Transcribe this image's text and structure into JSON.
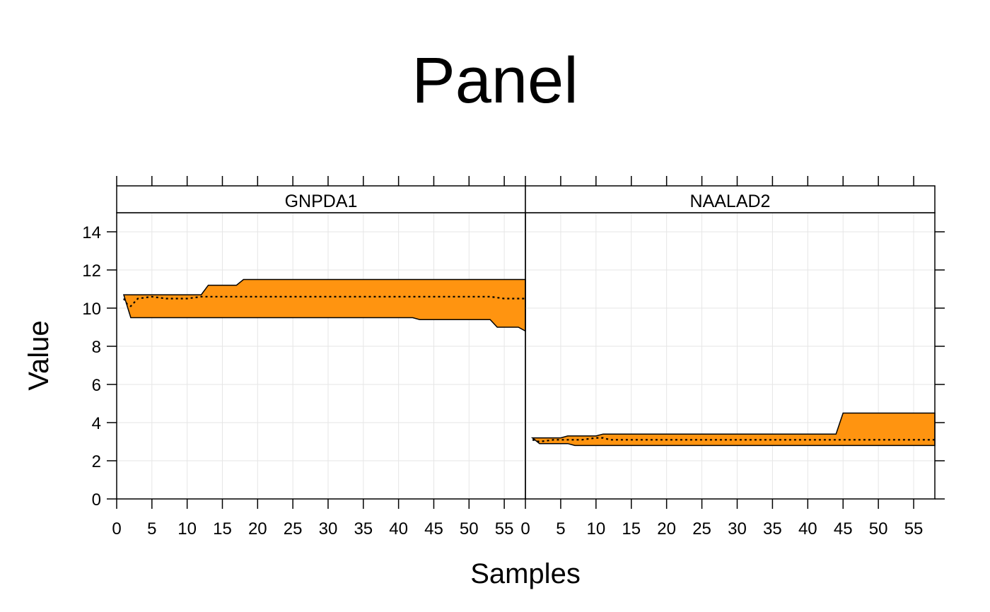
{
  "chart_data": {
    "type": "area",
    "title": "Panel",
    "xlabel": "Samples",
    "ylabel": "Value",
    "xlim": [
      0,
      58
    ],
    "ylim": [
      0,
      15
    ],
    "grid": true,
    "colors": {
      "band_fill": "#ff9410",
      "line": "#000000",
      "grid": "#e6e6e6",
      "strip_bg": "#ffffff"
    },
    "x_ticks": [
      0,
      5,
      10,
      15,
      20,
      25,
      30,
      35,
      40,
      45,
      50,
      55
    ],
    "y_ticks": [
      0,
      2,
      4,
      6,
      8,
      10,
      12,
      14
    ],
    "panels": [
      {
        "name": "GNPDA1",
        "band_upper": [
          [
            1,
            10.7
          ],
          [
            12,
            10.7
          ],
          [
            13,
            11.2
          ],
          [
            17,
            11.2
          ],
          [
            18,
            11.5
          ],
          [
            58,
            11.5
          ]
        ],
        "band_lower": [
          [
            1,
            10.7
          ],
          [
            2,
            9.5
          ],
          [
            42,
            9.5
          ],
          [
            43,
            9.4
          ],
          [
            53,
            9.4
          ],
          [
            54,
            9.0
          ],
          [
            57,
            9.0
          ],
          [
            58,
            8.8
          ]
        ],
        "median": [
          [
            1,
            10.5
          ],
          [
            1.5,
            10.2
          ],
          [
            2,
            10.1
          ],
          [
            3,
            10.5
          ],
          [
            5,
            10.6
          ],
          [
            7,
            10.5
          ],
          [
            10,
            10.5
          ],
          [
            12,
            10.6
          ],
          [
            53,
            10.6
          ],
          [
            55,
            10.5
          ],
          [
            58,
            10.5
          ]
        ]
      },
      {
        "name": "NAALAD2",
        "band_upper": [
          [
            1,
            3.2
          ],
          [
            5,
            3.2
          ],
          [
            6,
            3.3
          ],
          [
            10,
            3.3
          ],
          [
            11,
            3.4
          ],
          [
            44,
            3.4
          ],
          [
            45,
            4.5
          ],
          [
            58,
            4.5
          ]
        ],
        "band_lower": [
          [
            1,
            3.2
          ],
          [
            2,
            2.9
          ],
          [
            6,
            2.9
          ],
          [
            7,
            2.8
          ],
          [
            58,
            2.8
          ]
        ],
        "median": [
          [
            1,
            3.1
          ],
          [
            2,
            3.0
          ],
          [
            4,
            3.1
          ],
          [
            6,
            3.1
          ],
          [
            8,
            3.1
          ],
          [
            10,
            3.2
          ],
          [
            11,
            3.2
          ],
          [
            12,
            3.1
          ],
          [
            58,
            3.1
          ]
        ]
      }
    ]
  }
}
